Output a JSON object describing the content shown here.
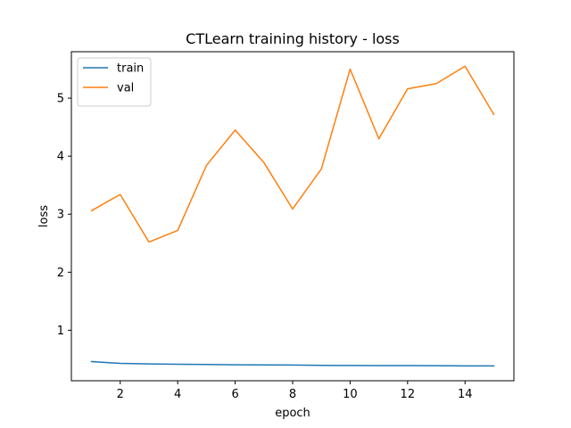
{
  "chart_data": {
    "type": "line",
    "title": "CTLearn training history - loss",
    "xlabel": "epoch",
    "ylabel": "loss",
    "x": [
      1,
      2,
      3,
      4,
      5,
      6,
      7,
      8,
      9,
      10,
      11,
      12,
      13,
      14,
      15
    ],
    "xlim": [
      0.3,
      15.7
    ],
    "ylim": [
      0.13,
      5.8
    ],
    "xticks": [
      2,
      4,
      6,
      8,
      10,
      12,
      14
    ],
    "yticks": [
      1,
      2,
      3,
      4,
      5
    ],
    "grid": false,
    "legend_position": "top-left",
    "series": [
      {
        "name": "train",
        "color": "#1f77b4",
        "values": [
          0.46,
          0.43,
          0.42,
          0.415,
          0.41,
          0.405,
          0.403,
          0.401,
          0.395,
          0.393,
          0.392,
          0.391,
          0.39,
          0.386,
          0.385
        ]
      },
      {
        "name": "val",
        "color": "#ff7f0e",
        "values": [
          3.06,
          3.34,
          2.52,
          2.72,
          3.84,
          4.45,
          3.89,
          3.09,
          3.78,
          5.5,
          4.3,
          5.16,
          5.25,
          5.55,
          4.72
        ]
      }
    ]
  }
}
